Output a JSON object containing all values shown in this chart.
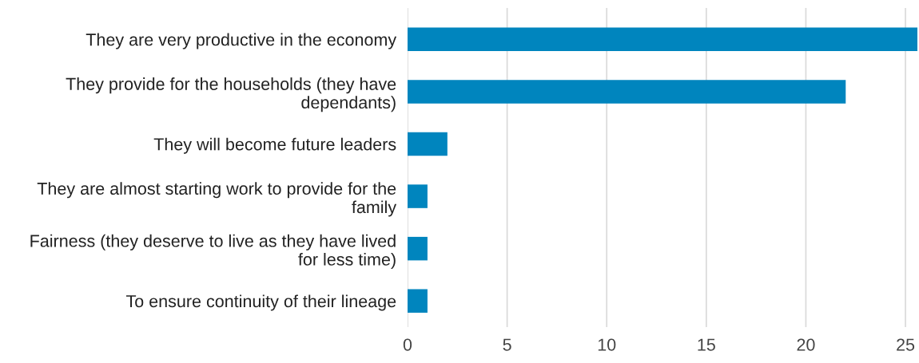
{
  "chart_data": {
    "type": "bar",
    "orientation": "horizontal",
    "categories": [
      "They are very productive in the economy",
      "They provide for the households (they have dependants)",
      "They will become future leaders",
      "They are almost starting work to provide for the family",
      "Fairness (they deserve to live as they have lived for less time)",
      "To ensure continuity of their lineage"
    ],
    "values": [
      25.6,
      22,
      2,
      1,
      1,
      1
    ],
    "color": "#0085be",
    "xlim": [
      0,
      25.6
    ],
    "xticks": [
      0,
      5,
      10,
      15,
      20,
      25
    ],
    "grid": "x"
  }
}
